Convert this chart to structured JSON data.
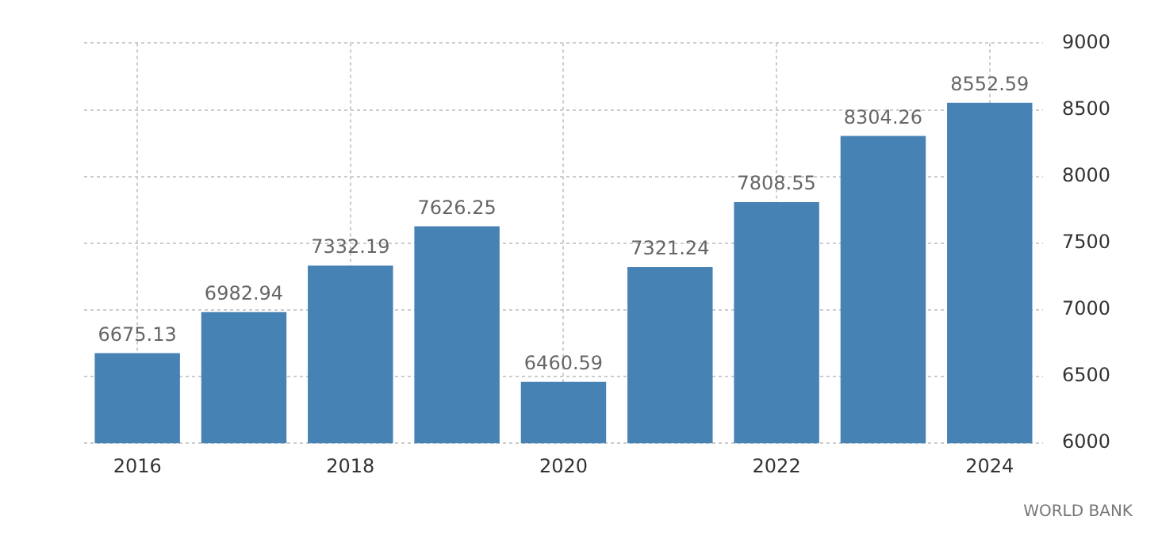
{
  "chart_data": {
    "type": "bar",
    "categories": [
      "2016",
      null,
      "2018",
      null,
      "2020",
      null,
      "2022",
      null,
      "2024"
    ],
    "values": [
      6675.13,
      6982.94,
      7332.19,
      7626.25,
      6460.59,
      7321.24,
      7808.55,
      8304.26,
      8552.59
    ],
    "color": "#4682b4",
    "ylim": [
      6000,
      9000
    ],
    "yticks": [
      6000,
      6500,
      7000,
      7500,
      8000,
      8500,
      9000
    ],
    "grid": true,
    "data_labels": true,
    "annotations": [
      "WORLD BANK"
    ]
  }
}
